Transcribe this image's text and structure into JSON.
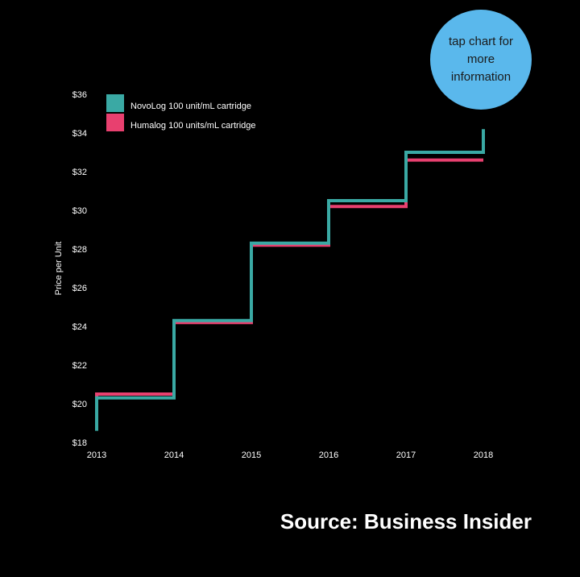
{
  "info_bubble": {
    "label": "tap chart for more information"
  },
  "source": "Source: Business Insider",
  "colors": {
    "background": "#000000",
    "novolog": "#3aa9a4",
    "humalog": "#e8406f",
    "bubble": "#5ab8ec",
    "text": "#ffffff"
  },
  "chart_data": {
    "type": "line",
    "step": "post",
    "ylabel": "Price per Unit",
    "xlabel": "",
    "x": [
      2013,
      2014,
      2015,
      2016,
      2017,
      2018
    ],
    "x_tick_labels": [
      "2013",
      "2014",
      "2015",
      "2016",
      "2017",
      "2018"
    ],
    "ylim": [
      18,
      36
    ],
    "y_ticks": [
      18,
      20,
      22,
      24,
      26,
      28,
      30,
      32,
      34,
      36
    ],
    "y_tick_labels": [
      "$18",
      "$20",
      "$22",
      "$24",
      "$26",
      "$28",
      "$30",
      "$32",
      "$34",
      "$36"
    ],
    "grid": false,
    "legend_position": "top-left",
    "series": [
      {
        "name": "NovoLog 100 unit/mL cartridge",
        "color": "#3aa9a4",
        "start": 18.6,
        "values": [
          20.3,
          24.3,
          28.3,
          30.5,
          33.0,
          34.2
        ]
      },
      {
        "name": "Humalog 100 units/mL cartridge",
        "color": "#e8406f",
        "start": 18.7,
        "values": [
          20.5,
          24.2,
          28.2,
          30.2,
          32.6,
          32.6
        ]
      }
    ]
  }
}
